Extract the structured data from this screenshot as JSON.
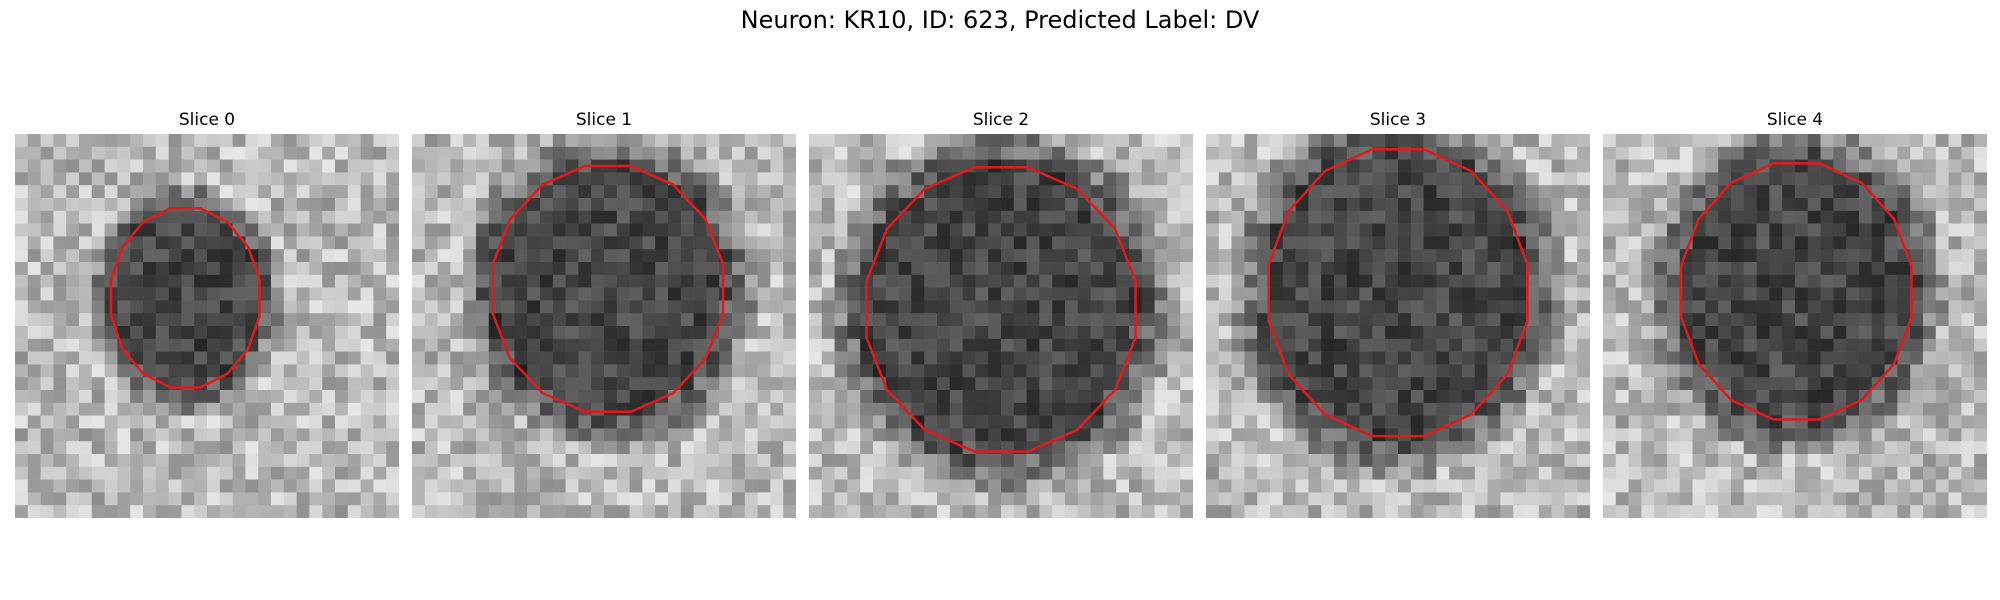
{
  "figure": {
    "title": "Neuron: KR10, ID: 623, Predicted Label: DV"
  },
  "panels": [
    {
      "title": "Slice 0",
      "contour_color": "#e31a1c"
    },
    {
      "title": "Slice 1",
      "contour_color": "#e31a1c"
    },
    {
      "title": "Slice 2",
      "contour_color": "#e31a1c"
    },
    {
      "title": "Slice 3",
      "contour_color": "#e31a1c"
    },
    {
      "title": "Slice 4",
      "contour_color": "#e31a1c"
    }
  ]
}
